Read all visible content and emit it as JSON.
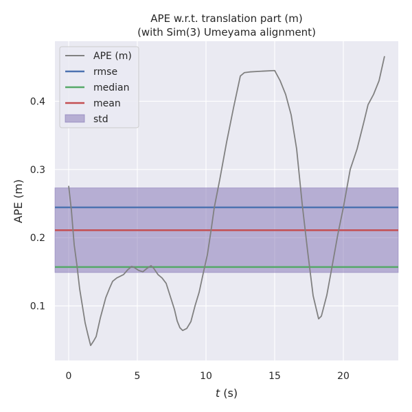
{
  "chart_data": {
    "type": "line",
    "title": "APE w.r.t. translation part (m)",
    "subtitle": "(with Sim(3) Umeyama alignment)",
    "xlabel_var": "t",
    "xlabel_unit": " (s)",
    "ylabel": "APE (m)",
    "xlim": [
      -1,
      24
    ],
    "ylim": [
      0.02,
      0.488
    ],
    "xticks": [
      0,
      5,
      10,
      15,
      20
    ],
    "xtick_labels": [
      "0",
      "5",
      "10",
      "15",
      "20"
    ],
    "yticks": [
      0.1,
      0.2,
      0.3,
      0.4
    ],
    "ytick_labels": [
      "0.1",
      "0.2",
      "0.3",
      "0.4"
    ],
    "grid": true,
    "legend_position": "top-left",
    "colors": {
      "background": "#eaeaf2",
      "grid": "#ffffff",
      "ape": "#808080",
      "rmse": "#4c72b0",
      "median": "#55a868",
      "mean": "#c44e52",
      "std": "#8172b3"
    },
    "series": [
      {
        "name": "APE (m)",
        "x": [
          0.0,
          0.2,
          0.4,
          0.6,
          0.8,
          1.0,
          1.2,
          1.4,
          1.6,
          1.8,
          2.0,
          2.3,
          2.7,
          3.0,
          3.2,
          3.5,
          3.8,
          4.0,
          4.3,
          4.6,
          4.8,
          5.1,
          5.4,
          5.7,
          6.0,
          6.2,
          6.5,
          6.8,
          7.1,
          7.4,
          7.7,
          7.9,
          8.1,
          8.3,
          8.6,
          8.9,
          9.2,
          9.5,
          9.8,
          10.1,
          10.4,
          10.6,
          11.0,
          11.5,
          12.0,
          12.5,
          12.8,
          13.2,
          14.0,
          15.0,
          15.4,
          15.8,
          16.2,
          16.6,
          17.0,
          17.4,
          17.8,
          18.2,
          18.4,
          18.8,
          19.2,
          19.6,
          20.0,
          20.5,
          21.0,
          21.5,
          21.8,
          22.2,
          22.6,
          23.0
        ],
        "y": [
          0.276,
          0.24,
          0.19,
          0.16,
          0.125,
          0.1,
          0.075,
          0.058,
          0.042,
          0.048,
          0.055,
          0.082,
          0.112,
          0.127,
          0.136,
          0.141,
          0.144,
          0.146,
          0.153,
          0.158,
          0.156,
          0.152,
          0.15,
          0.155,
          0.159,
          0.155,
          0.146,
          0.141,
          0.133,
          0.114,
          0.095,
          0.078,
          0.068,
          0.064,
          0.067,
          0.077,
          0.1,
          0.12,
          0.148,
          0.175,
          0.215,
          0.244,
          0.285,
          0.34,
          0.39,
          0.437,
          0.442,
          0.443,
          0.444,
          0.445,
          0.43,
          0.41,
          0.38,
          0.33,
          0.25,
          0.18,
          0.115,
          0.081,
          0.085,
          0.116,
          0.16,
          0.205,
          0.244,
          0.3,
          0.33,
          0.37,
          0.395,
          0.41,
          0.43,
          0.466
        ]
      }
    ],
    "reference_lines": [
      {
        "name": "rmse",
        "y": 0.2445
      },
      {
        "name": "median",
        "y": 0.157
      },
      {
        "name": "mean",
        "y": 0.211
      }
    ],
    "std_band": {
      "name": "std",
      "y0": 0.149,
      "y1": 0.273
    }
  }
}
